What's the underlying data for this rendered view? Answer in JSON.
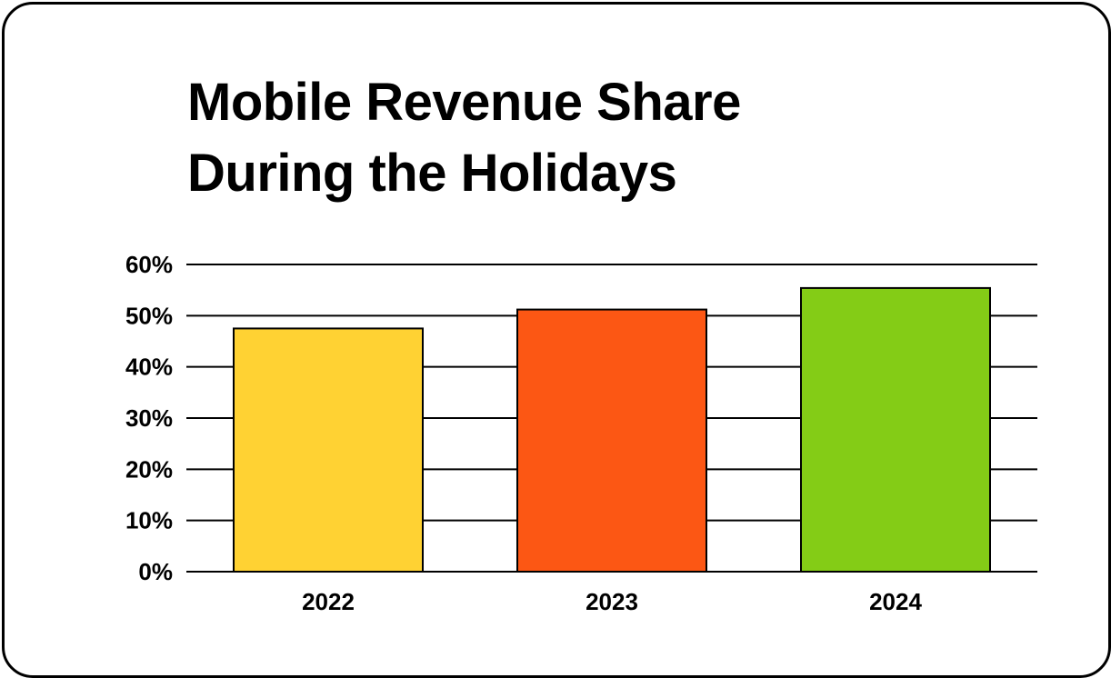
{
  "chart_data": {
    "type": "bar",
    "title_lines": [
      "Mobile Revenue Share",
      "During the Holidays"
    ],
    "categories": [
      "2022",
      "2023",
      "2024"
    ],
    "values": [
      47.5,
      51.2,
      55.4
    ],
    "colors": [
      "#FFD233",
      "#FC5714",
      "#84CC16"
    ],
    "ylim": [
      0,
      60
    ],
    "yticks": [
      0,
      10,
      20,
      30,
      40,
      50,
      60
    ],
    "ytick_labels": [
      "0%",
      "10%",
      "20%",
      "30%",
      "40%",
      "50%",
      "60%"
    ],
    "grid": true,
    "legend": false,
    "xlabel": "",
    "ylabel": ""
  }
}
